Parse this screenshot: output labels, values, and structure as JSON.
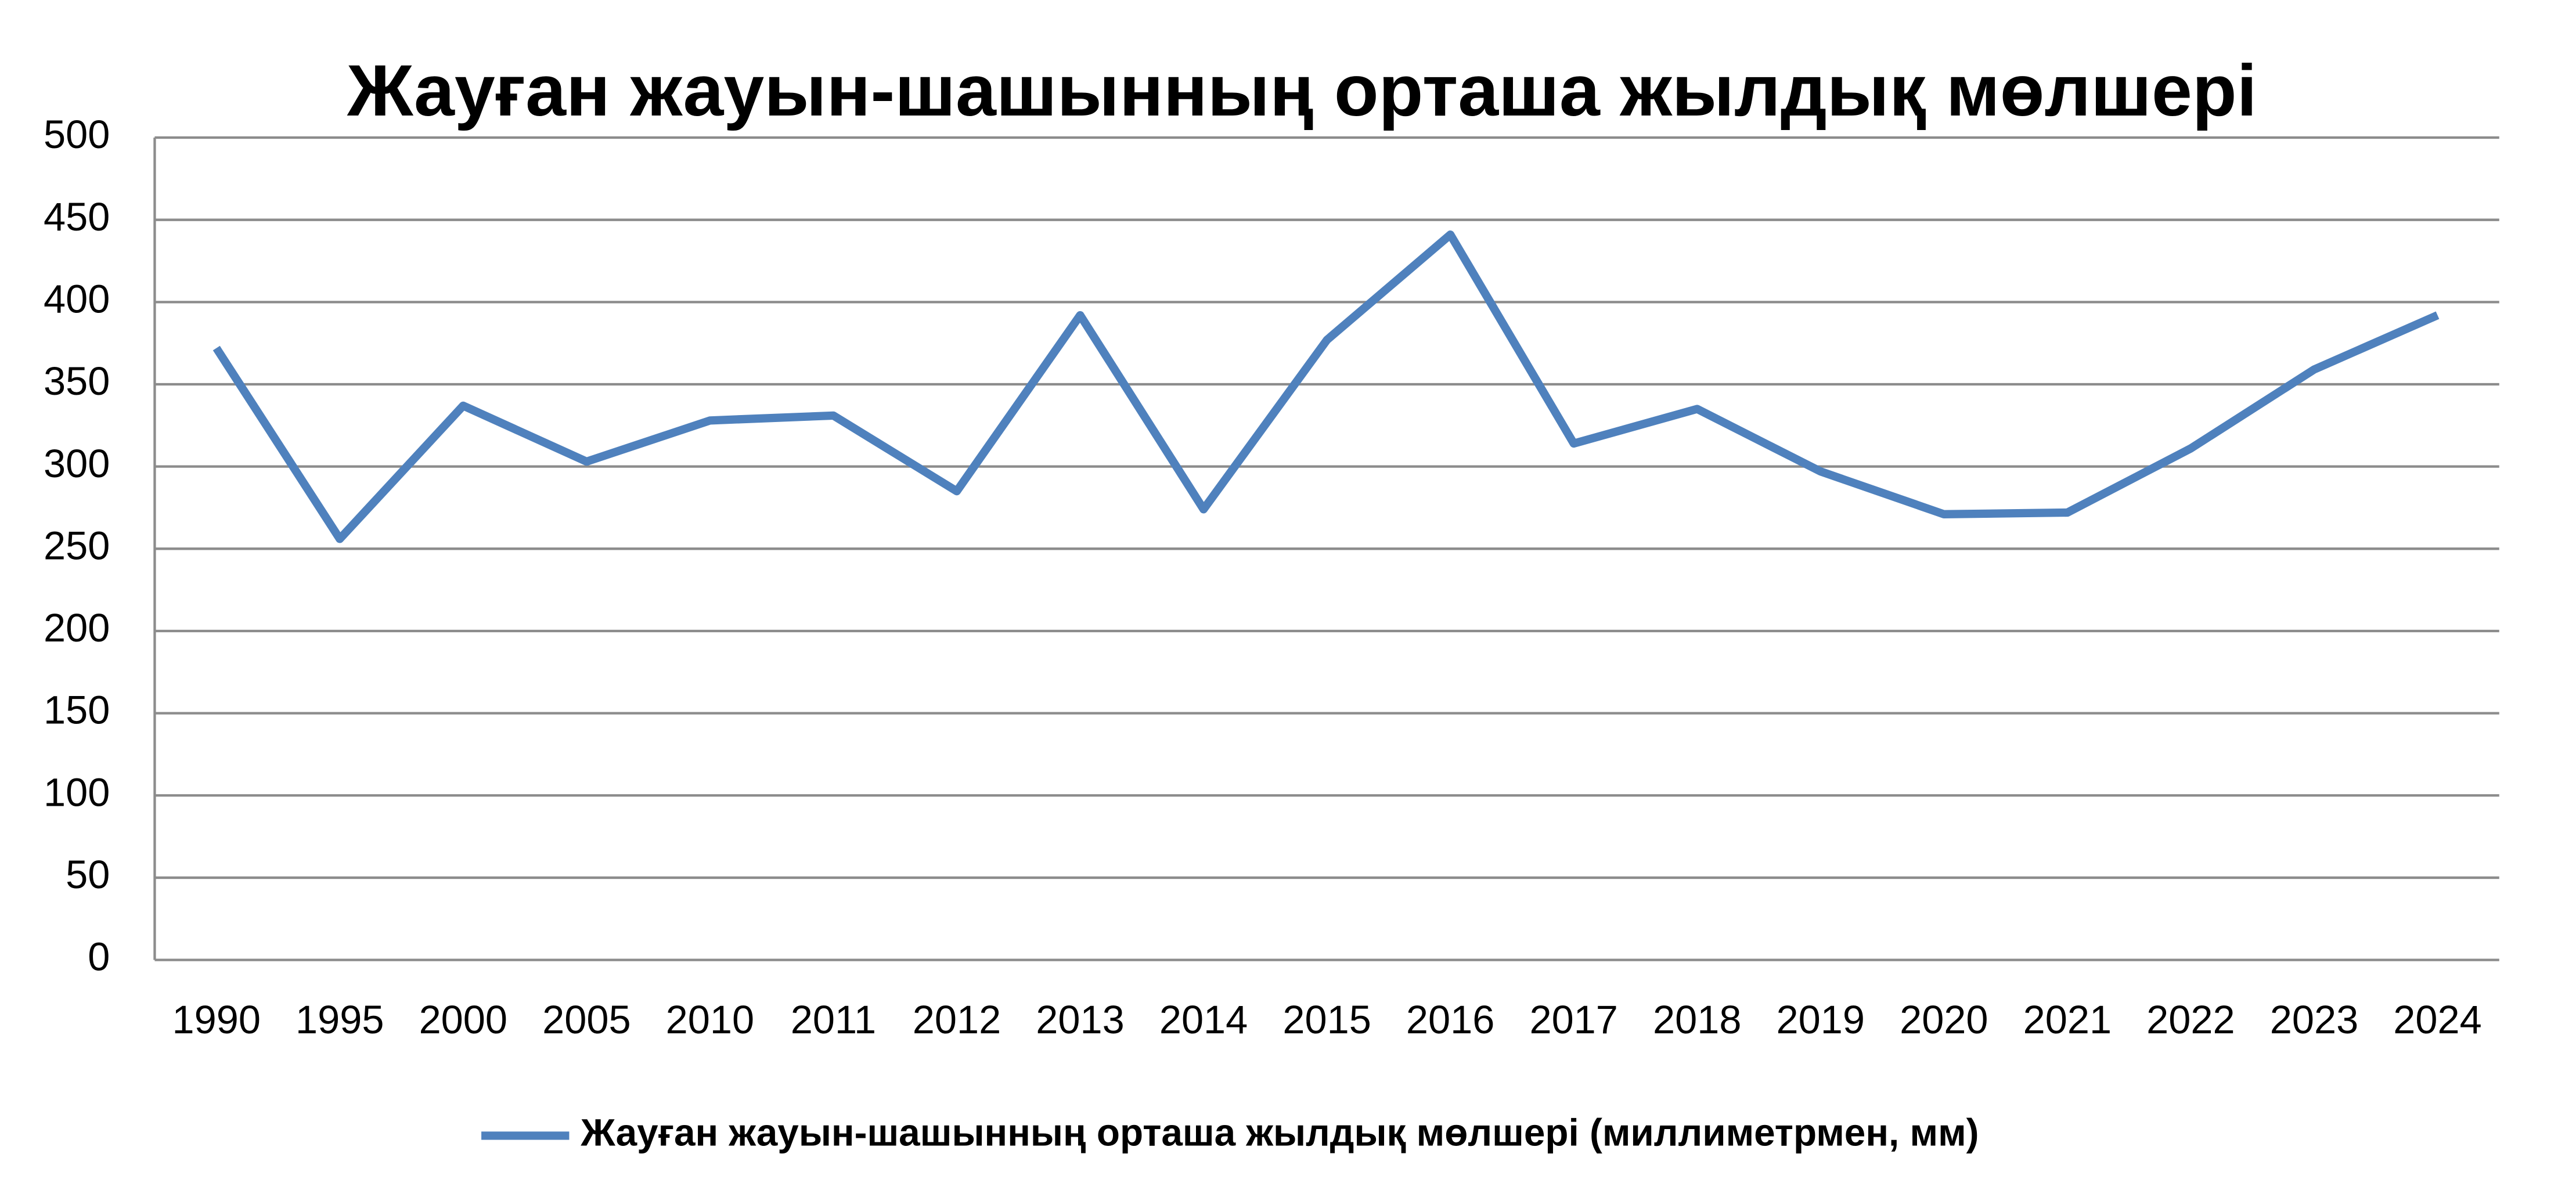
{
  "chart_data": {
    "type": "line",
    "title": "Жауған жауын-шашынның орташа жылдық мөлшері",
    "categories": [
      "1990",
      "1995",
      "2000",
      "2005",
      "2010",
      "2011",
      "2012",
      "2013",
      "2014",
      "2015",
      "2016",
      "2017",
      "2018",
      "2019",
      "2020",
      "2021",
      "2022",
      "2023",
      "2024"
    ],
    "series": [
      {
        "name": "Жауған жауын-шашынның орташа жылдық мөлшері (миллиметрмен, мм)",
        "color": "#4f81bd",
        "values": [
          372,
          256,
          337,
          303,
          328,
          331,
          285,
          392,
          274,
          377,
          441,
          314,
          335,
          297,
          271,
          272,
          311,
          359,
          392
        ]
      }
    ],
    "ylim": [
      0,
      500
    ],
    "yticks": [
      0,
      50,
      100,
      150,
      200,
      250,
      300,
      350,
      400,
      450,
      500
    ],
    "grid": true,
    "legend": "bottom"
  }
}
